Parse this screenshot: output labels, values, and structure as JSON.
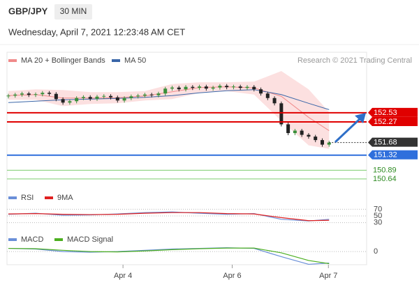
{
  "header": {
    "symbol": "GBP/JPY",
    "interval": "30 MIN",
    "timestamp": "Wednesday, April 7, 2021 12:23:48 AM CET"
  },
  "chart_data": [
    {
      "type": "candlestick",
      "credit": "Research © 2021 Trading Central",
      "xlim": [
        -0.2,
        52.5
      ],
      "ylim": [
        150.38,
        153.86
      ],
      "up_color": "#3a8f3a",
      "down_color": "#222222",
      "open": [
        153.0,
        153.02,
        153.05,
        153.08,
        153.04,
        153.06,
        153.1,
        153.07,
        152.92,
        152.82,
        152.86,
        152.95,
        152.98,
        152.93,
        152.99,
        153.01,
        152.97,
        152.88,
        152.95,
        153.0,
        153.02,
        153.05,
        153.03,
        153.08,
        153.22,
        153.25,
        153.2,
        153.27,
        153.24,
        153.28,
        153.22,
        153.25,
        153.3,
        153.26,
        153.28,
        153.24,
        153.27,
        153.2,
        153.08,
        152.95,
        152.8,
        152.2,
        151.95,
        152.02,
        151.9,
        151.85,
        151.75,
        151.62
      ],
      "high": [
        153.07,
        153.1,
        153.13,
        153.13,
        153.11,
        153.15,
        153.15,
        153.12,
        152.97,
        152.91,
        153.0,
        153.03,
        153.03,
        153.04,
        153.06,
        153.06,
        153.02,
        153.0,
        153.05,
        153.07,
        153.1,
        153.1,
        153.13,
        153.27,
        153.3,
        153.3,
        153.32,
        153.32,
        153.33,
        153.33,
        153.3,
        153.35,
        153.35,
        153.33,
        153.33,
        153.32,
        153.32,
        153.25,
        153.13,
        153.0,
        152.85,
        152.25,
        152.07,
        152.07,
        151.95,
        151.9,
        151.8,
        151.73
      ],
      "low": [
        152.94,
        152.96,
        152.99,
        152.98,
        152.98,
        153.0,
        153.01,
        152.86,
        152.76,
        152.76,
        152.8,
        152.89,
        152.87,
        152.87,
        152.93,
        152.91,
        152.82,
        152.82,
        152.89,
        152.94,
        152.96,
        152.97,
        152.97,
        153.02,
        153.16,
        153.14,
        153.14,
        153.18,
        153.18,
        153.16,
        153.16,
        153.19,
        153.2,
        153.2,
        153.18,
        153.18,
        153.14,
        153.02,
        152.89,
        152.74,
        152.14,
        151.89,
        151.89,
        151.84,
        151.79,
        151.69,
        151.56,
        151.56
      ],
      "close": [
        153.02,
        153.05,
        153.08,
        153.04,
        153.06,
        153.1,
        153.07,
        152.92,
        152.82,
        152.86,
        152.95,
        152.98,
        152.93,
        152.99,
        153.01,
        152.97,
        152.88,
        152.95,
        153.0,
        153.02,
        153.05,
        153.03,
        153.08,
        153.22,
        153.25,
        153.2,
        153.27,
        153.24,
        153.28,
        153.22,
        153.25,
        153.3,
        153.26,
        153.28,
        153.24,
        153.27,
        153.2,
        153.08,
        152.95,
        152.8,
        152.2,
        151.95,
        152.02,
        151.9,
        151.85,
        151.75,
        151.62,
        151.68
      ],
      "series": [
        {
          "name": "MA 20 + Bollinger Bands",
          "color": "#f08a8a",
          "band_color": "#fbd3d3",
          "x": [
            0,
            4,
            8,
            12,
            16,
            20,
            24,
            28,
            32,
            36,
            40,
            44,
            47
          ],
          "values": [
            153.02,
            153.05,
            152.95,
            152.95,
            152.96,
            153.01,
            153.13,
            153.25,
            153.27,
            153.24,
            153.0,
            152.4,
            152.02
          ],
          "upper": [
            153.15,
            153.2,
            153.18,
            153.12,
            153.12,
            153.15,
            153.35,
            153.4,
            153.4,
            153.42,
            153.72,
            153.2,
            152.55
          ],
          "lower": [
            152.9,
            152.9,
            152.72,
            152.78,
            152.8,
            152.88,
            152.92,
            153.1,
            153.15,
            153.05,
            152.3,
            151.6,
            151.5
          ]
        },
        {
          "name": "MA 50",
          "color": "#3a66a8",
          "x": [
            0,
            4,
            8,
            12,
            16,
            20,
            24,
            28,
            32,
            36,
            40,
            44,
            47
          ],
          "values": [
            152.82,
            152.86,
            152.9,
            152.92,
            152.94,
            152.97,
            153.02,
            153.1,
            153.16,
            153.19,
            153.05,
            152.8,
            152.62
          ]
        }
      ],
      "levels": [
        {
          "value": 152.53,
          "color": "#e00000",
          "line": "solid",
          "tag": "box"
        },
        {
          "value": 152.27,
          "color": "#e00000",
          "line": "solid",
          "tag": "box"
        },
        {
          "value": 151.68,
          "color": "#333333",
          "line": "dotted",
          "tag": "box"
        },
        {
          "value": 151.32,
          "color": "#2f6fdc",
          "line": "solid",
          "tag": "box"
        },
        {
          "value": 150.89,
          "color": "#7ccd6e",
          "text_color": "#2e8b22",
          "line": "solid",
          "tag": "text"
        },
        {
          "value": 150.64,
          "color": "#7ccd6e",
          "text_color": "#2e8b22",
          "line": "solid",
          "tag": "text"
        }
      ]
    },
    {
      "type": "line",
      "xlim": [
        -0.2,
        52.5
      ],
      "ylim": [
        25,
        75
      ],
      "yticks": [
        70,
        50,
        30
      ],
      "series": [
        {
          "name": "RSI",
          "color": "#6a8fd8",
          "x": [
            0,
            4,
            8,
            12,
            16,
            20,
            24,
            28,
            32,
            36,
            40,
            44,
            47
          ],
          "values": [
            55,
            58,
            52,
            53,
            56,
            60,
            62,
            58,
            55,
            57,
            40,
            35,
            40
          ]
        },
        {
          "name": "9MA",
          "color": "#e02020",
          "x": [
            0,
            4,
            8,
            12,
            16,
            20,
            24,
            28,
            32,
            36,
            40,
            44,
            47
          ],
          "values": [
            56,
            57,
            55,
            54,
            55,
            58,
            60,
            60,
            57,
            56,
            45,
            36,
            37
          ]
        }
      ]
    },
    {
      "type": "line",
      "xlim": [
        -0.2,
        52.5
      ],
      "ylim": [
        -0.25,
        0.1
      ],
      "yticks": [
        0
      ],
      "xticks": [
        {
          "value": 16.8,
          "label": "Apr 4"
        },
        {
          "value": 32.8,
          "label": "Apr 6"
        },
        {
          "value": 46.9,
          "label": "Apr 7"
        }
      ],
      "series": [
        {
          "name": "MACD",
          "color": "#6a8fd8",
          "x": [
            0,
            4,
            8,
            12,
            16,
            20,
            24,
            28,
            32,
            36,
            40,
            44,
            47
          ],
          "values": [
            0.05,
            0.04,
            0.0,
            -0.01,
            0.0,
            0.02,
            0.04,
            0.05,
            0.06,
            0.05,
            -0.08,
            -0.2,
            -0.18
          ]
        },
        {
          "name": "MACD Signal",
          "color": "#4caf20",
          "x": [
            0,
            4,
            8,
            12,
            16,
            20,
            24,
            28,
            32,
            36,
            40,
            44,
            47
          ],
          "values": [
            0.05,
            0.045,
            0.02,
            0.0,
            -0.005,
            0.01,
            0.03,
            0.045,
            0.055,
            0.055,
            -0.02,
            -0.14,
            -0.19
          ]
        }
      ]
    }
  ]
}
